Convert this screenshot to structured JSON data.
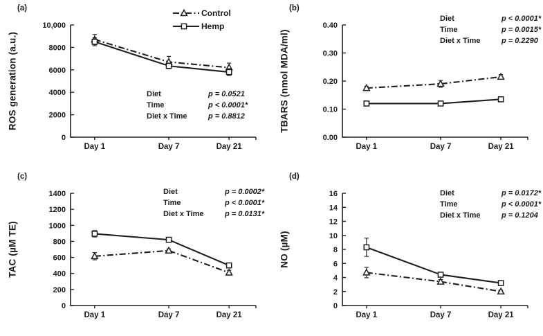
{
  "figure": {
    "background": "#ffffff",
    "text_color": "#1b1b1b",
    "line_color": "#1e1e1e"
  },
  "chart_data": [
    {
      "panel_label": "(a)",
      "type": "line",
      "ylabel": "ROS generation (a.u.)",
      "categories": [
        "Day 1",
        "Day 7",
        "Day 21"
      ],
      "ylim": [
        0,
        10000
      ],
      "yticks": [
        0,
        2000,
        4000,
        6000,
        8000,
        10000
      ],
      "ytick_labels": [
        "0",
        "2000",
        "4000",
        "6000",
        "8000",
        "10,000"
      ],
      "legend_position": "top-right",
      "grid": false,
      "series": [
        {
          "name": "Control",
          "line": "dashdot",
          "marker": "triangle",
          "values": [
            8700,
            6700,
            6200
          ],
          "errors": [
            450,
            500,
            400
          ]
        },
        {
          "name": "Hemp",
          "line": "solid",
          "marker": "square",
          "values": [
            8500,
            6350,
            5800
          ],
          "errors": [
            350,
            250,
            300
          ]
        }
      ],
      "stats": [
        {
          "label": "Diet",
          "p": "p = 0.0521"
        },
        {
          "label": "Time",
          "p": "p < 0.0001*"
        },
        {
          "label": "Diet x Time",
          "p": "p = 0.8812"
        }
      ]
    },
    {
      "panel_label": "(b)",
      "type": "line",
      "ylabel": "TBARS (nmol MDA/ml)",
      "categories": [
        "Day 1",
        "Day 7",
        "Day 21"
      ],
      "ylim": [
        0,
        0.4
      ],
      "yticks": [
        0,
        0.1,
        0.2,
        0.3,
        0.4
      ],
      "ytick_labels": [
        "0.00",
        "0.10",
        "0.20",
        "0.30",
        "0.40"
      ],
      "grid": false,
      "series": [
        {
          "name": "Control",
          "line": "dashdot",
          "marker": "triangle",
          "values": [
            0.175,
            0.19,
            0.215
          ],
          "errors": [
            0.006,
            0.012,
            0.008
          ]
        },
        {
          "name": "Hemp",
          "line": "solid",
          "marker": "square",
          "values": [
            0.12,
            0.12,
            0.135
          ],
          "errors": [
            0.004,
            0.005,
            0.007
          ]
        }
      ],
      "stats": [
        {
          "label": "Diet",
          "p": "p < 0.0001*"
        },
        {
          "label": "Time",
          "p": "p = 0.0015*"
        },
        {
          "label": "Diet x Time",
          "p": "p = 0.2290"
        }
      ]
    },
    {
      "panel_label": "(c)",
      "type": "line",
      "ylabel": "TAC (µM TE)",
      "categories": [
        "Day 1",
        "Day 7",
        "Day 21"
      ],
      "ylim": [
        0,
        1400
      ],
      "yticks": [
        0,
        200,
        400,
        600,
        800,
        1000,
        1200,
        1400
      ],
      "ytick_labels": [
        "0",
        "200",
        "400",
        "600",
        "800",
        "1000",
        "1200",
        "1400"
      ],
      "grid": false,
      "series": [
        {
          "name": "Control",
          "line": "dashdot",
          "marker": "triangle",
          "values": [
            615,
            685,
            410
          ],
          "errors": [
            45,
            20,
            30
          ]
        },
        {
          "name": "Hemp",
          "line": "solid",
          "marker": "square",
          "values": [
            895,
            820,
            500
          ],
          "errors": [
            40,
            25,
            25
          ]
        }
      ],
      "stats": [
        {
          "label": "Diet",
          "p": "p = 0.0002*"
        },
        {
          "label": "Time",
          "p": "p < 0.0001*"
        },
        {
          "label": "Diet x Time",
          "p": "p = 0.0131*"
        }
      ]
    },
    {
      "panel_label": "(d)",
      "type": "line",
      "ylabel": "NO (µM)",
      "categories": [
        "Day 1",
        "Day 7",
        "Day 21"
      ],
      "ylim": [
        0,
        16
      ],
      "yticks": [
        0,
        2,
        4,
        6,
        8,
        10,
        12,
        14,
        16
      ],
      "ytick_labels": [
        "0",
        "2",
        "4",
        "6",
        "8",
        "10",
        "12",
        "14",
        "16"
      ],
      "grid": false,
      "series": [
        {
          "name": "Control",
          "line": "dashdot",
          "marker": "triangle",
          "values": [
            4.7,
            3.4,
            2.0
          ],
          "errors": [
            0.75,
            0.3,
            0.2
          ]
        },
        {
          "name": "Hemp",
          "line": "solid",
          "marker": "square",
          "values": [
            8.3,
            4.4,
            3.2
          ],
          "errors": [
            1.3,
            0.35,
            0.3
          ]
        }
      ],
      "stats": [
        {
          "label": "Diet",
          "p": "p = 0.0172*"
        },
        {
          "label": "Time",
          "p": "p < 0.0001*"
        },
        {
          "label": "Diet x Time",
          "p": "p = 0.1204"
        }
      ]
    }
  ]
}
